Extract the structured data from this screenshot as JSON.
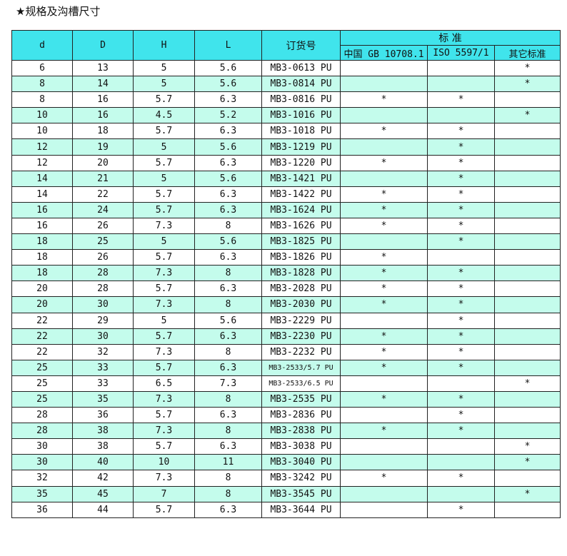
{
  "title": "★规格及沟槽尺寸",
  "header": {
    "d": "d",
    "D": "D",
    "H": "H",
    "L": "L",
    "order_no": "订货号",
    "standard": "标 准",
    "std_cols": [
      "中国 GB 10708.1",
      "ISO 5597/1",
      "其它标准"
    ]
  },
  "colors": {
    "header_bg": "#40E4EC",
    "alt_row_bg": "#C4FCEC"
  },
  "rows": [
    [
      "6",
      "13",
      "5",
      "5.6",
      "MB3-0613 PU",
      "",
      "",
      "*"
    ],
    [
      "8",
      "14",
      "5",
      "5.6",
      "MB3-0814 PU",
      "",
      "",
      "*"
    ],
    [
      "8",
      "16",
      "5.7",
      "6.3",
      "MB3-0816 PU",
      "*",
      "*",
      ""
    ],
    [
      "10",
      "16",
      "4.5",
      "5.2",
      "MB3-1016 PU",
      "",
      "",
      "*"
    ],
    [
      "10",
      "18",
      "5.7",
      "6.3",
      "MB3-1018 PU",
      "*",
      "*",
      ""
    ],
    [
      "12",
      "19",
      "5",
      "5.6",
      "MB3-1219 PU",
      "",
      "*",
      ""
    ],
    [
      "12",
      "20",
      "5.7",
      "6.3",
      "MB3-1220 PU",
      "*",
      "*",
      ""
    ],
    [
      "14",
      "21",
      "5",
      "5.6",
      "MB3-1421 PU",
      "",
      "*",
      ""
    ],
    [
      "14",
      "22",
      "5.7",
      "6.3",
      "MB3-1422 PU",
      "*",
      "*",
      ""
    ],
    [
      "16",
      "24",
      "5.7",
      "6.3",
      "MB3-1624 PU",
      "*",
      "*",
      ""
    ],
    [
      "16",
      "26",
      "7.3",
      "8",
      "MB3-1626 PU",
      "*",
      "*",
      ""
    ],
    [
      "18",
      "25",
      "5",
      "5.6",
      "MB3-1825 PU",
      "",
      "*",
      ""
    ],
    [
      "18",
      "26",
      "5.7",
      "6.3",
      "MB3-1826 PU",
      "*",
      "",
      ""
    ],
    [
      "18",
      "28",
      "7.3",
      "8",
      "MB3-1828 PU",
      "*",
      "*",
      ""
    ],
    [
      "20",
      "28",
      "5.7",
      "6.3",
      "MB3-2028 PU",
      "*",
      "*",
      ""
    ],
    [
      "20",
      "30",
      "7.3",
      "8",
      "MB3-2030 PU",
      "*",
      "*",
      ""
    ],
    [
      "22",
      "29",
      "5",
      "5.6",
      "MB3-2229 PU",
      "",
      "*",
      ""
    ],
    [
      "22",
      "30",
      "5.7",
      "6.3",
      "MB3-2230 PU",
      "*",
      "*",
      ""
    ],
    [
      "22",
      "32",
      "7.3",
      "8",
      "MB3-2232 PU",
      "*",
      "*",
      ""
    ],
    [
      "25",
      "33",
      "5.7",
      "6.3",
      "MB3-2533/5.7 PU",
      "*",
      "*",
      ""
    ],
    [
      "25",
      "33",
      "6.5",
      "7.3",
      "MB3-2533/6.5 PU",
      "",
      "",
      "*"
    ],
    [
      "25",
      "35",
      "7.3",
      "8",
      "MB3-2535 PU",
      "*",
      "*",
      ""
    ],
    [
      "28",
      "36",
      "5.7",
      "6.3",
      "MB3-2836 PU",
      "",
      "*",
      ""
    ],
    [
      "28",
      "38",
      "7.3",
      "8",
      "MB3-2838 PU",
      "*",
      "*",
      ""
    ],
    [
      "30",
      "38",
      "5.7",
      "6.3",
      "MB3-3038 PU",
      "",
      "",
      "*"
    ],
    [
      "30",
      "40",
      "10",
      "11",
      "MB3-3040 PU",
      "",
      "",
      "*"
    ],
    [
      "32",
      "42",
      "7.3",
      "8",
      "MB3-3242 PU",
      "*",
      "*",
      ""
    ],
    [
      "35",
      "45",
      "7",
      "8",
      "MB3-3545 PU",
      "",
      "",
      "*"
    ],
    [
      "36",
      "44",
      "5.7",
      "6.3",
      "MB3-3644 PU",
      "",
      "*",
      ""
    ]
  ]
}
